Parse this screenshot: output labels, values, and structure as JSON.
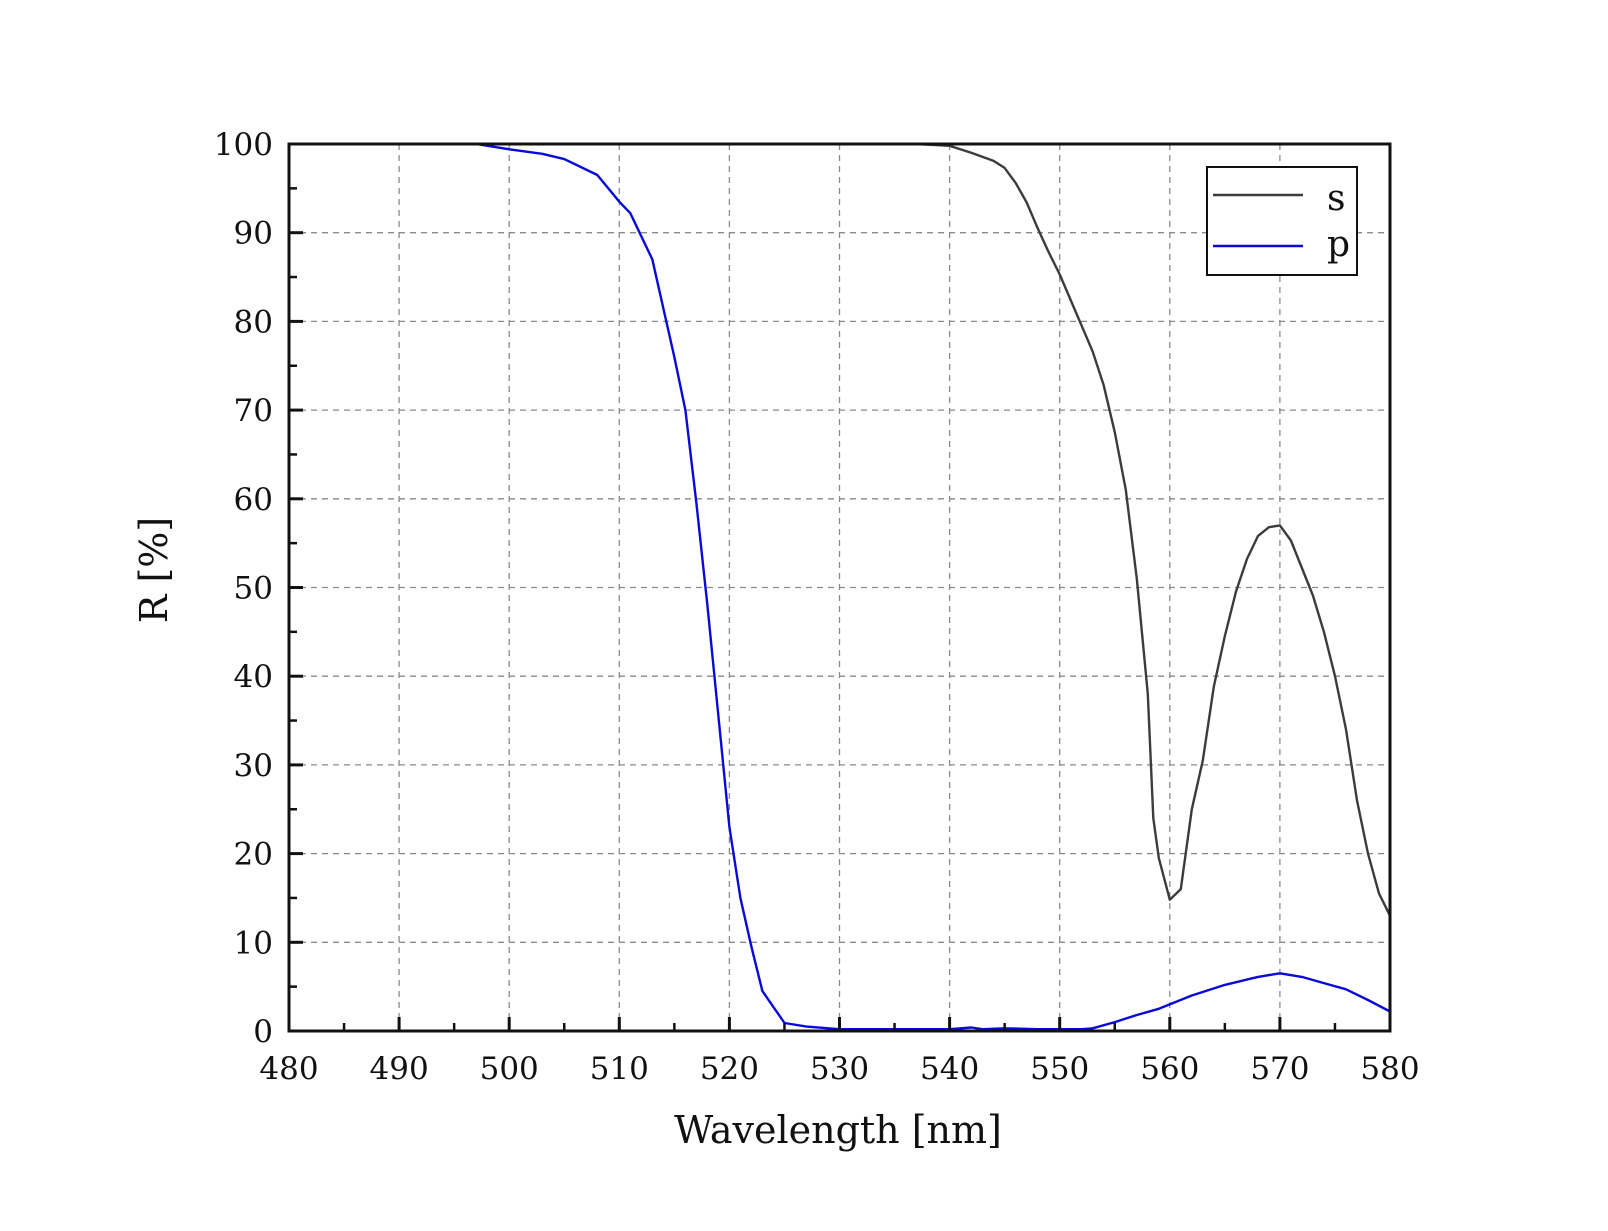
{
  "colors": {
    "s": "#3c3c3c",
    "p": "#0a0ad8",
    "axis": "#111111",
    "grid": "#8a8a8a"
  },
  "chart_data": {
    "type": "line",
    "xlabel": "Wavelength [nm]",
    "ylabel": "R [%]",
    "xlim": [
      480,
      580
    ],
    "ylim": [
      0,
      100
    ],
    "xticks": [
      480,
      490,
      500,
      510,
      520,
      530,
      540,
      550,
      560,
      570,
      580
    ],
    "yticks": [
      0,
      10,
      20,
      30,
      40,
      50,
      60,
      70,
      80,
      90,
      100
    ],
    "grid": true,
    "grid_style": "dashed",
    "legend_position": "top-right",
    "series": [
      {
        "name": "s",
        "color": "#3c3c3c",
        "x": [
          537,
          540,
          542,
          544,
          545,
          546,
          547,
          548,
          549,
          550,
          551,
          552,
          553,
          554,
          555,
          556,
          557,
          558,
          558.5,
          559,
          560,
          561,
          562,
          563,
          564,
          565,
          566,
          567,
          568,
          569,
          570,
          571,
          572,
          573,
          574,
          575,
          576,
          577,
          578,
          579,
          580
        ],
        "y": [
          100,
          99.8,
          99,
          98.1,
          97.3,
          95.6,
          93.4,
          90.5,
          87.8,
          85.3,
          82.4,
          79.5,
          76.6,
          72.8,
          67.5,
          61,
          51,
          38,
          24,
          19.5,
          14.8,
          16,
          25,
          30.5,
          38.8,
          44.5,
          49.5,
          53.2,
          55.8,
          56.8,
          57,
          55.3,
          52.2,
          49.1,
          45,
          40,
          34,
          26,
          20,
          15.5,
          13
        ]
      },
      {
        "name": "p",
        "color": "#0a0ad8",
        "x": [
          485.7,
          490,
          495,
          497,
          500,
          503,
          505,
          508,
          510,
          511,
          513,
          514,
          515,
          516,
          517,
          518,
          519,
          520,
          521,
          522,
          523,
          525,
          527,
          530,
          535,
          540,
          542,
          543,
          545,
          548,
          550,
          552,
          553,
          555,
          557,
          559,
          562,
          565,
          567,
          568,
          570,
          572,
          574,
          576,
          578,
          580
        ],
        "y": [
          100,
          100,
          100,
          100,
          99.4,
          98.9,
          98.3,
          96.5,
          93.5,
          92.2,
          87,
          81.5,
          76,
          70,
          59.5,
          48,
          35.5,
          23,
          15,
          9.5,
          4.5,
          0.9,
          0.5,
          0.2,
          0.2,
          0.2,
          0.4,
          0.2,
          0.3,
          0.2,
          0.2,
          0.2,
          0.3,
          1,
          1.8,
          2.5,
          4,
          5.2,
          5.8,
          6.1,
          6.5,
          6.1,
          5.4,
          4.7,
          3.5,
          2.2
        ]
      }
    ]
  }
}
